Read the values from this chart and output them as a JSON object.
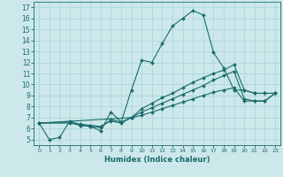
{
  "xlabel": "Humidex (Indice chaleur)",
  "background_color": "#cce8ea",
  "grid_color": "#a8d4d8",
  "line_color": "#1a6b6b",
  "spine_color": "#1a6b6b",
  "xlim": [
    -0.5,
    23.5
  ],
  "ylim": [
    4.5,
    17.5
  ],
  "xticks": [
    0,
    1,
    2,
    3,
    4,
    5,
    6,
    7,
    8,
    9,
    10,
    11,
    12,
    13,
    14,
    15,
    16,
    17,
    18,
    19,
    20,
    21,
    22,
    23
  ],
  "yticks": [
    5,
    6,
    7,
    8,
    9,
    10,
    11,
    12,
    13,
    14,
    15,
    16,
    17
  ],
  "lines": [
    {
      "x": [
        0,
        1,
        2,
        3,
        4,
        5,
        6,
        7,
        8,
        9,
        10,
        11,
        12,
        13,
        14,
        15,
        16,
        17,
        18,
        19,
        20,
        21,
        22,
        23
      ],
      "y": [
        6.5,
        5.0,
        5.2,
        6.7,
        6.3,
        6.2,
        5.8,
        7.5,
        6.6,
        9.5,
        12.2,
        12.0,
        13.7,
        15.3,
        16.0,
        16.7,
        16.3,
        12.9,
        11.5,
        9.5,
        9.5,
        9.2,
        9.2,
        9.2
      ]
    },
    {
      "x": [
        0,
        3,
        4,
        5,
        6,
        7,
        8,
        9,
        10,
        11,
        12,
        13,
        14,
        15,
        16,
        17,
        18,
        19,
        20,
        21,
        22,
        23
      ],
      "y": [
        6.5,
        6.5,
        6.3,
        6.2,
        6.1,
        6.8,
        6.6,
        7.0,
        7.8,
        8.3,
        8.8,
        9.2,
        9.7,
        10.2,
        10.6,
        11.0,
        11.3,
        11.8,
        9.5,
        9.2,
        9.2,
        9.2
      ]
    },
    {
      "x": [
        0,
        3,
        4,
        5,
        6,
        7,
        8,
        9,
        10,
        11,
        12,
        13,
        14,
        15,
        16,
        17,
        18,
        19,
        20,
        21,
        22,
        23
      ],
      "y": [
        6.5,
        6.6,
        6.4,
        6.3,
        6.2,
        6.7,
        6.5,
        7.0,
        7.5,
        7.9,
        8.3,
        8.7,
        9.1,
        9.5,
        9.9,
        10.4,
        10.8,
        11.2,
        8.7,
        8.5,
        8.5,
        9.2
      ]
    },
    {
      "x": [
        0,
        9,
        10,
        11,
        12,
        13,
        14,
        15,
        16,
        17,
        18,
        19,
        20,
        21,
        22,
        23
      ],
      "y": [
        6.5,
        7.0,
        7.2,
        7.5,
        7.8,
        8.1,
        8.4,
        8.7,
        9.0,
        9.3,
        9.5,
        9.7,
        8.5,
        8.5,
        8.5,
        9.2
      ]
    }
  ]
}
